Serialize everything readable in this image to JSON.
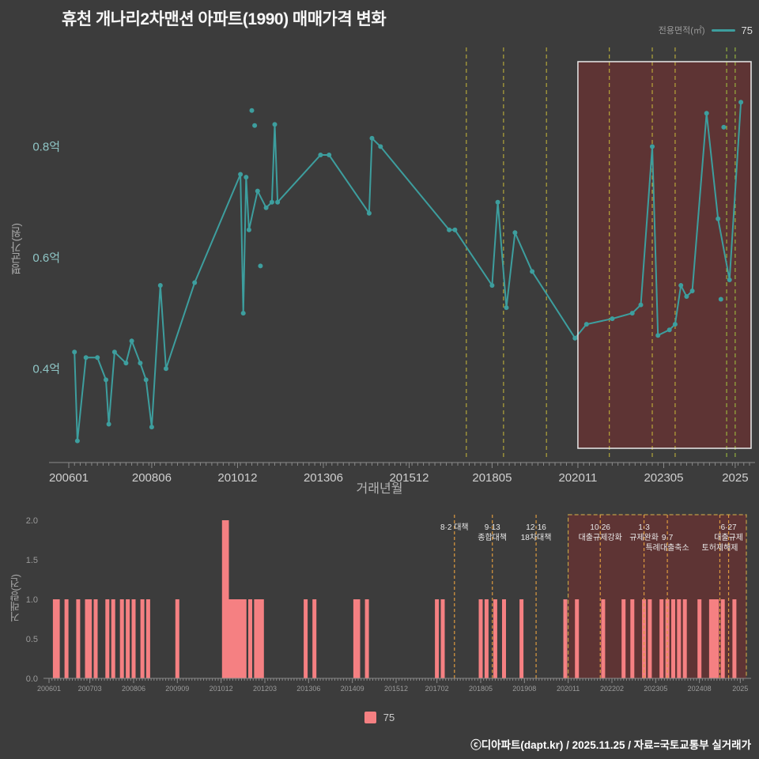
{
  "page": {
    "title": "휴천 개나리2차맨션 아파트(1990) 매매가격 변화",
    "footer": "ⓒ디아파트(dapt.kr) / 2025.11.25 / 자료=국토교통부 실거래가",
    "background": "#3c3c3c"
  },
  "legend_top": {
    "label": "전용면적(㎡)",
    "series": "75"
  },
  "legend_bottom": {
    "series": "75"
  },
  "colors": {
    "accent_line": "#3d9e9e",
    "bar": "#f58082",
    "policy_yellow": "#c9bb3a",
    "policy_green": "#a5c83e",
    "policy_orange": "#dd9a3f",
    "highlight_fill": "rgba(150,40,40,0.38)",
    "highlight_stroke": "#e9e9e9",
    "highlight_dash_stroke": "#d9b54a",
    "axis": "#8a8a8a",
    "tick_label_main": "#cfcfcf",
    "tick_label_small": "#9a9a9a",
    "y_label_teal": "#8fc6c6",
    "annotation": "#e8e8e8"
  },
  "chart_data": [
    {
      "type": "line",
      "series_name": "75",
      "xlabel": "거래년월",
      "ylabel": "평균가(원)",
      "unit": "억",
      "ylim": [
        0.23,
        0.95
      ],
      "x_ticks": [
        {
          "m": "200601",
          "t": "200601"
        },
        {
          "m": "200806",
          "t": "200806"
        },
        {
          "m": "201012",
          "t": "201012"
        },
        {
          "m": "201306",
          "t": "201306"
        },
        {
          "m": "201512",
          "t": "201512"
        },
        {
          "m": "201805",
          "t": "201805"
        },
        {
          "m": "202011",
          "t": "202011"
        },
        {
          "m": "202305",
          "t": "202305"
        },
        {
          "m": "202506",
          "t": "2025"
        }
      ],
      "y_ticks": [
        {
          "v": 0.4,
          "t": "0.4억"
        },
        {
          "v": 0.6,
          "t": "0.6억"
        },
        {
          "v": 0.8,
          "t": "0.8억"
        }
      ],
      "points": [
        [
          "200603",
          0.43
        ],
        [
          "200604",
          0.27
        ],
        [
          "200607",
          0.42
        ],
        [
          "200611",
          0.42
        ],
        [
          "200702",
          0.38
        ],
        [
          "200703",
          0.3
        ],
        [
          "200705",
          0.43
        ],
        [
          "200709",
          0.41
        ],
        [
          "200711",
          0.45
        ],
        [
          "200802",
          0.41
        ],
        [
          "200804",
          0.38
        ],
        [
          "200806",
          0.295
        ],
        [
          "200809",
          0.55
        ],
        [
          "200811",
          0.4
        ],
        [
          "200909",
          0.555
        ],
        [
          "201101",
          0.75
        ],
        [
          "201102",
          0.5
        ],
        [
          "201103",
          0.745
        ],
        [
          "201104",
          0.65
        ],
        [
          "201107",
          0.72
        ],
        [
          "201110",
          0.69
        ],
        [
          "201112",
          0.7
        ],
        [
          "201201",
          0.84
        ],
        [
          "201202",
          0.7
        ],
        [
          "201305",
          0.785
        ],
        [
          "201308",
          0.785
        ],
        [
          "201410",
          0.68
        ],
        [
          "201411",
          0.815
        ],
        [
          "201502",
          0.8
        ],
        [
          "201702",
          0.65
        ],
        [
          "201704",
          0.65
        ],
        [
          "201805",
          0.55
        ],
        [
          "201807",
          0.7
        ],
        [
          "201810",
          0.51
        ],
        [
          "201901",
          0.645
        ],
        [
          "201907",
          0.575
        ],
        [
          "202010",
          0.455
        ],
        [
          "202102",
          0.48
        ],
        [
          "202111",
          0.49
        ],
        [
          "202206",
          0.5
        ],
        [
          "202209",
          0.515
        ],
        [
          "202301",
          0.8
        ],
        [
          "202303",
          0.46
        ],
        [
          "202307",
          0.47
        ],
        [
          "202309",
          0.48
        ],
        [
          "202311",
          0.55
        ],
        [
          "202401",
          0.53
        ],
        [
          "202403",
          0.54
        ],
        [
          "202408",
          0.86
        ],
        [
          "202412",
          0.67
        ],
        [
          "202504",
          0.56
        ],
        [
          "202508",
          0.88
        ]
      ],
      "isolated_points": [
        [
          "201105",
          0.865
        ],
        [
          "201106",
          0.838
        ],
        [
          "201108",
          0.585
        ],
        [
          "202501",
          0.525
        ],
        [
          "202502",
          0.835
        ]
      ],
      "highlight_region": {
        "from": "202011",
        "to": "202512"
      },
      "policy_lines": [
        {
          "m": "201708",
          "label": "8·2 대책",
          "tone": "yellow"
        },
        {
          "m": "201809",
          "label": "9·13 종합대책",
          "tone": "yellow"
        },
        {
          "m": "201912",
          "label": "12·16 18차대책",
          "tone": "yellow"
        },
        {
          "m": "202110",
          "label": "10·26 대출규제강화",
          "tone": "yellow"
        },
        {
          "m": "202301",
          "label": "1·3 규제완화",
          "tone": "yellow"
        },
        {
          "m": "202309",
          "label": "9·7 특례대출축소",
          "tone": "yellow"
        },
        {
          "m": "202503",
          "label": "토허제해제",
          "tone": "green"
        },
        {
          "m": "202506",
          "label": "6·27 대출규제",
          "tone": "green"
        }
      ]
    },
    {
      "type": "bar",
      "series_name": "75",
      "ylabel": "거래량(건)",
      "ylim": [
        0,
        2
      ],
      "y_ticks": [
        "0.0",
        "0.5",
        "1.0",
        "1.5",
        "2.0"
      ],
      "x_ticks": [
        {
          "m": "200601",
          "t": "200601"
        },
        {
          "m": "200703",
          "t": "200703"
        },
        {
          "m": "200806",
          "t": "200806"
        },
        {
          "m": "200909",
          "t": "200909"
        },
        {
          "m": "201012",
          "t": "201012"
        },
        {
          "m": "201203",
          "t": "201203"
        },
        {
          "m": "201306",
          "t": "201306"
        },
        {
          "m": "201409",
          "t": "201409"
        },
        {
          "m": "201512",
          "t": "201512"
        },
        {
          "m": "201702",
          "t": "201702"
        },
        {
          "m": "201805",
          "t": "201805"
        },
        {
          "m": "201908",
          "t": "201908"
        },
        {
          "m": "202011",
          "t": "202011"
        },
        {
          "m": "202202",
          "t": "202202"
        },
        {
          "m": "202305",
          "t": "202305"
        },
        {
          "m": "202408",
          "t": "202408"
        },
        {
          "m": "202510",
          "t": "2025"
        }
      ],
      "bars": [
        [
          "200603",
          1
        ],
        [
          "200604",
          1
        ],
        [
          "200607",
          1
        ],
        [
          "200611",
          1
        ],
        [
          "200702",
          1
        ],
        [
          "200703",
          1
        ],
        [
          "200705",
          1
        ],
        [
          "200709",
          1
        ],
        [
          "200711",
          1
        ],
        [
          "200802",
          1
        ],
        [
          "200804",
          1
        ],
        [
          "200806",
          1
        ],
        [
          "200809",
          1
        ],
        [
          "200811",
          1
        ],
        [
          "200909",
          1
        ],
        [
          "201101",
          2
        ],
        [
          "201102",
          2
        ],
        [
          "201103",
          1
        ],
        [
          "201104",
          1
        ],
        [
          "201105",
          1
        ],
        [
          "201106",
          1
        ],
        [
          "201107",
          1
        ],
        [
          "201108",
          1
        ],
        [
          "201110",
          1
        ],
        [
          "201112",
          1
        ],
        [
          "201201",
          1
        ],
        [
          "201202",
          1
        ],
        [
          "201305",
          1
        ],
        [
          "201308",
          1
        ],
        [
          "201410",
          1
        ],
        [
          "201411",
          1
        ],
        [
          "201502",
          1
        ],
        [
          "201702",
          1
        ],
        [
          "201704",
          1
        ],
        [
          "201805",
          1
        ],
        [
          "201807",
          1
        ],
        [
          "201810",
          1
        ],
        [
          "201901",
          1
        ],
        [
          "201907",
          1
        ],
        [
          "202010",
          1
        ],
        [
          "202102",
          1
        ],
        [
          "202111",
          1
        ],
        [
          "202206",
          1
        ],
        [
          "202209",
          1
        ],
        [
          "202301",
          1
        ],
        [
          "202303",
          1
        ],
        [
          "202307",
          1
        ],
        [
          "202309",
          1
        ],
        [
          "202311",
          1
        ],
        [
          "202401",
          1
        ],
        [
          "202403",
          1
        ],
        [
          "202408",
          1
        ],
        [
          "202412",
          1
        ],
        [
          "202501",
          1
        ],
        [
          "202502",
          1
        ],
        [
          "202504",
          1
        ],
        [
          "202508",
          1
        ]
      ],
      "highlight_region": {
        "from": "202011",
        "to": "202512"
      },
      "annotations": [
        {
          "m": "201708",
          "row": 1,
          "text": "8·2 대책"
        },
        {
          "m": "201809",
          "row": 1,
          "text": "9·13"
        },
        {
          "m": "201809",
          "row": 2,
          "text": "종합대책"
        },
        {
          "m": "201912",
          "row": 1,
          "text": "12·16"
        },
        {
          "m": "201912",
          "row": 2,
          "text": "18차대책"
        },
        {
          "m": "202110",
          "row": 1,
          "text": "10·26"
        },
        {
          "m": "202110",
          "row": 2,
          "text": "대출규제강화"
        },
        {
          "m": "202301",
          "row": 1,
          "text": "1·3"
        },
        {
          "m": "202301",
          "row": 2,
          "text": "규제완화"
        },
        {
          "m": "202309",
          "row": 2,
          "text": "9·7"
        },
        {
          "m": "202309",
          "row": 3,
          "text": "특례대출축소"
        },
        {
          "m": "202503",
          "row": 3,
          "text": "토허제해제"
        },
        {
          "m": "202506",
          "row": 1,
          "text": "6·27"
        },
        {
          "m": "202506",
          "row": 2,
          "text": "대출규제"
        }
      ]
    }
  ]
}
